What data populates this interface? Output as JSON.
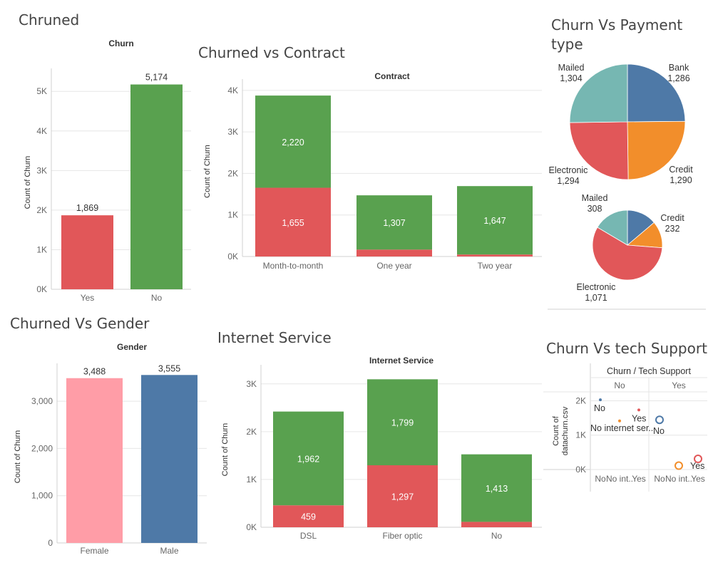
{
  "colors": {
    "yes": "#e15759",
    "no": "#59a14f",
    "female": "#ff9da7",
    "male": "#4e79a7",
    "bank": "#4e79a7",
    "credit": "#f28e2b",
    "electronic": "#e15759",
    "mailed": "#76b7b2"
  },
  "chart_data": [
    {
      "id": "churned",
      "type": "bar",
      "title": "Chruned",
      "header": "Churn",
      "ylabel": "Count of Churn",
      "categories": [
        "Yes",
        "No"
      ],
      "values": [
        1869,
        5174
      ],
      "value_labels": [
        "1,869",
        "5,174"
      ],
      "yticks": [
        "0K",
        "1K",
        "2K",
        "3K",
        "4K",
        "5K"
      ],
      "ylim": [
        0,
        5400
      ],
      "grid": true
    },
    {
      "id": "contract",
      "type": "bar",
      "stacked": true,
      "title": "Churned vs Contract",
      "header": "Contract",
      "ylabel": "Count of Churn",
      "categories": [
        "Month-to-month",
        "One year",
        "Two year"
      ],
      "series": [
        {
          "values": [
            1655,
            166,
            48
          ],
          "labels": [
            "1,655",
            "",
            ""
          ]
        },
        {
          "values": [
            2220,
            1307,
            1647
          ],
          "labels": [
            "2,220",
            "1,307",
            "1,647"
          ]
        }
      ],
      "yticks": [
        "0K",
        "1K",
        "2K",
        "3K",
        "4K"
      ],
      "ylim": [
        0,
        4100
      ],
      "grid": true
    },
    {
      "id": "payment",
      "type": "pie",
      "title": "Churn Vs Payment type",
      "pies": [
        {
          "slices": [
            {
              "name": "Bank",
              "value": 1286,
              "label": "1,286"
            },
            {
              "name": "Credit",
              "value": 1290,
              "label": "1,290"
            },
            {
              "name": "Electronic",
              "value": 1294,
              "label": "1,294"
            },
            {
              "name": "Mailed",
              "value": 1304,
              "label": "1,304"
            }
          ]
        },
        {
          "slices": [
            {
              "name": "Bank",
              "value": 258,
              "label": ""
            },
            {
              "name": "Credit",
              "value": 232,
              "label": "232"
            },
            {
              "name": "Electronic",
              "value": 1071,
              "label": "1,071"
            },
            {
              "name": "Mailed",
              "value": 308,
              "label": "308"
            }
          ]
        }
      ]
    },
    {
      "id": "gender",
      "type": "bar",
      "title": "Churned Vs Gender",
      "header": "Gender",
      "ylabel": "Count of Churn",
      "categories": [
        "Female",
        "Male"
      ],
      "values": [
        3488,
        3555
      ],
      "value_labels": [
        "3,488",
        "3,555"
      ],
      "yticks": [
        "0",
        "1,000",
        "2,000",
        "3,000"
      ],
      "ylim": [
        0,
        3650
      ],
      "grid": true
    },
    {
      "id": "internet",
      "type": "bar",
      "stacked": true,
      "title": "Internet Service",
      "header": "Internet Service",
      "ylabel": "Count of Churn",
      "categories": [
        "DSL",
        "Fiber optic",
        "No"
      ],
      "series": [
        {
          "values": [
            459,
            1297,
            113
          ],
          "labels": [
            "459",
            "1,297",
            "113"
          ]
        },
        {
          "values": [
            1962,
            1799,
            1413
          ],
          "labels": [
            "1,962",
            "1,799",
            "1,413"
          ]
        }
      ],
      "yticks": [
        "0K",
        "1K",
        "2K",
        "3K"
      ],
      "ylim": [
        0,
        3250
      ],
      "grid": true
    },
    {
      "id": "techsupport",
      "type": "scatter",
      "title": "Churn Vs tech Support",
      "header": "Churn / Tech Support",
      "ylabel": "Count of datachurn.csv",
      "panels": [
        "No",
        "Yes"
      ],
      "xcategories": [
        "No",
        "No int..",
        "Yes",
        "No",
        "No int..",
        "Yes"
      ],
      "yticks": [
        "0K",
        "1K",
        "2K"
      ],
      "ylim": [
        0,
        2300
      ],
      "points": [
        {
          "panel": 0,
          "slot": 0,
          "value": 2027,
          "label": "No",
          "color": "#4e79a7",
          "size": "small"
        },
        {
          "panel": 0,
          "slot": 1,
          "value": 1413,
          "label": "No internet ser..",
          "color": "#f28e2b",
          "size": "small"
        },
        {
          "panel": 0,
          "slot": 2,
          "value": 1734,
          "label": "Yes",
          "color": "#e15759",
          "size": "small"
        },
        {
          "panel": 1,
          "slot": 0,
          "value": 1446,
          "label": "No",
          "color": "#4e79a7",
          "size": "large"
        },
        {
          "panel": 1,
          "slot": 1,
          "value": 113,
          "label": "",
          "color": "#f28e2b",
          "size": "large"
        },
        {
          "panel": 1,
          "slot": 2,
          "value": 310,
          "label": "Yes",
          "color": "#e15759",
          "size": "large"
        }
      ]
    }
  ]
}
